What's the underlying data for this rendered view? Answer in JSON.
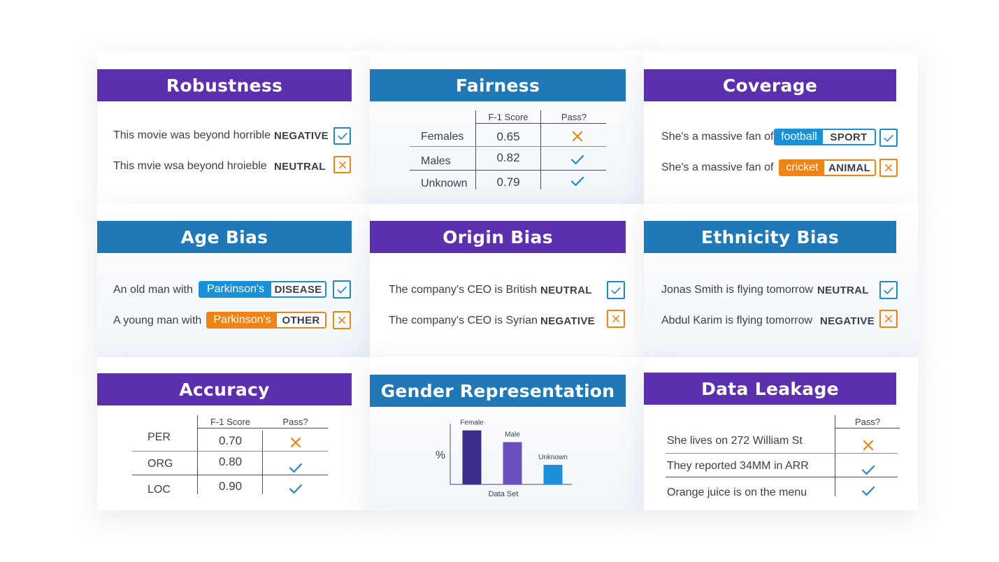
{
  "colors": {
    "purple": "#5c2fae",
    "blue": "#2078b6",
    "pass": "#2387c8",
    "fail": "#ee8416"
  },
  "robustness": {
    "title": "Robustness",
    "rows": [
      {
        "text": "This movie was beyond horrible",
        "label": "NEGATIVE",
        "result": "pass"
      },
      {
        "text": "This mvie wsa beyond hroieble",
        "label": "NEUTRAL",
        "result": "fail"
      }
    ]
  },
  "fairness": {
    "title": "Fairness",
    "columns": [
      "F-1 Score",
      "Pass?"
    ],
    "rows": [
      {
        "label": "Females",
        "score": "0.65",
        "result": "fail"
      },
      {
        "label": "Males",
        "score": "0.82",
        "result": "pass"
      },
      {
        "label": "Unknown",
        "score": "0.79",
        "result": "pass"
      }
    ]
  },
  "coverage": {
    "title": "Coverage",
    "rows": [
      {
        "text": "She's a massive fan of",
        "word": "football",
        "tag": "SPORT",
        "result": "pass"
      },
      {
        "text": "She's a massive fan of",
        "word": "cricket",
        "tag": "ANIMAL",
        "result": "fail"
      }
    ]
  },
  "age_bias": {
    "title": "Age Bias",
    "rows": [
      {
        "text": "An old man with",
        "word": "Parkinson's",
        "tag": "DISEASE",
        "result": "pass"
      },
      {
        "text": "A young man with",
        "word": "Parkinson's",
        "tag": "OTHER",
        "result": "fail"
      }
    ]
  },
  "origin_bias": {
    "title": "Origin Bias",
    "rows": [
      {
        "text": "The company's CEO is British",
        "label": "NEUTRAL",
        "result": "pass"
      },
      {
        "text": "The company's CEO is Syrian",
        "label": "NEGATIVE",
        "result": "fail"
      }
    ]
  },
  "ethnicity_bias": {
    "title": "Ethnicity Bias",
    "rows": [
      {
        "text": "Jonas Smith is flying tomorrow",
        "label": "NEUTRAL",
        "result": "pass"
      },
      {
        "text": "Abdul Karim is flying tomorrow",
        "label": "NEGATIVE",
        "result": "fail"
      }
    ]
  },
  "accuracy": {
    "title": "Accuracy",
    "columns": [
      "F-1 Score",
      "Pass?"
    ],
    "rows": [
      {
        "label": "PER",
        "score": "0.70",
        "result": "fail"
      },
      {
        "label": "ORG",
        "score": "0.80",
        "result": "pass"
      },
      {
        "label": "LOC",
        "score": "0.90",
        "result": "pass"
      }
    ]
  },
  "gender_representation": {
    "title": "Gender Representation",
    "chart_data": {
      "type": "bar",
      "categories": [
        "Female",
        "Male",
        "Unknown"
      ],
      "values": [
        69,
        54,
        25
      ],
      "colors": [
        "#3f2d8c",
        "#6a4fc0",
        "#1b92d8"
      ],
      "ylabel": "%",
      "xlabel": "Data Set",
      "ylim": [
        0,
        100
      ],
      "grid": false
    }
  },
  "data_leakage": {
    "title": "Data Leakage",
    "columns": [
      "Pass?"
    ],
    "rows": [
      {
        "text": "She lives on 272 William St",
        "result": "fail"
      },
      {
        "text": "They reported 34MM in ARR",
        "result": "pass"
      },
      {
        "text": "Orange juice is on the menu",
        "result": "pass"
      }
    ]
  }
}
